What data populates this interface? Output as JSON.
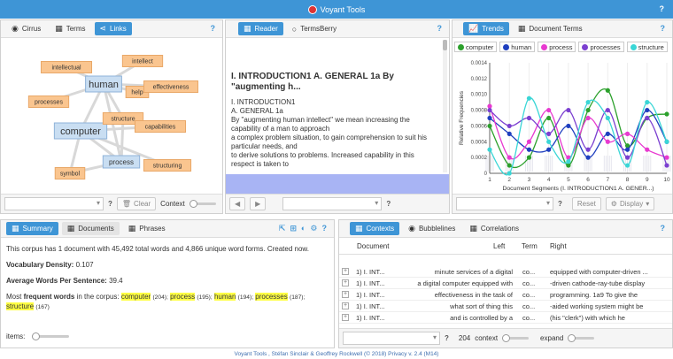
{
  "app": {
    "title": "Voyant Tools",
    "help": "?"
  },
  "cirrus_panel": {
    "tabs": [
      {
        "label": "Cirrus",
        "icon": "eye-icon"
      },
      {
        "label": "Terms",
        "icon": "table-icon"
      },
      {
        "label": "Links",
        "icon": "share-icon"
      }
    ],
    "nodes": [
      {
        "label": "intellectual",
        "type": "context"
      },
      {
        "label": "intellect",
        "type": "context"
      },
      {
        "label": "human",
        "type": "keyword"
      },
      {
        "label": "help",
        "type": "context"
      },
      {
        "label": "effectiveness",
        "type": "context"
      },
      {
        "label": "processes",
        "type": "context"
      },
      {
        "label": "computer",
        "type": "keyword"
      },
      {
        "label": "structure",
        "type": "context"
      },
      {
        "label": "capabilities",
        "type": "context"
      },
      {
        "label": "process",
        "type": "keyword"
      },
      {
        "label": "structuring",
        "type": "context"
      },
      {
        "label": "symbol",
        "type": "context"
      }
    ],
    "footer": {
      "clear": "Clear",
      "context": "Context"
    }
  },
  "reader_panel": {
    "tabs": [
      {
        "label": "Reader",
        "icon": "table-icon"
      },
      {
        "label": "TermsBerry",
        "icon": "circle-icon"
      }
    ],
    "heading": "I. INTRODUCTION1 A. GENERAL 1a By \"augmenting h...",
    "lines": [
      "I. INTRODUCTION1",
      "A. GENERAL 1a",
      "By \"augmenting human intellect\" we mean increasing the capability of a man to approach",
      "a complex problem situation, to gain comprehension to suit his particular needs, and",
      "to derive solutions to problems. Increased capability in this respect is taken to"
    ]
  },
  "trends_panel": {
    "tabs": [
      {
        "label": "Trends",
        "icon": "chart-icon"
      },
      {
        "label": "Document Terms",
        "icon": "table-icon"
      }
    ],
    "legend": [
      {
        "name": "computer",
        "color": "#2ca02c"
      },
      {
        "name": "human",
        "color": "#1f3fbf"
      },
      {
        "name": "process",
        "color": "#e83ad0"
      },
      {
        "name": "processes",
        "color": "#7b3fd0"
      },
      {
        "name": "structure",
        "color": "#3ad6d6"
      }
    ],
    "footer": {
      "reset": "Reset",
      "display": "Display"
    }
  },
  "chart_data": {
    "type": "line",
    "x": [
      1,
      2,
      3,
      4,
      5,
      6,
      7,
      8,
      9,
      10
    ],
    "ylabel": "Relative Frequencies",
    "xlabel": "Document Segments (I. INTRODUCTION1 A. GENER...)",
    "ylim": [
      0,
      0.0014
    ],
    "yticks": [
      "0",
      "0.0002",
      "0.0004",
      "0.0006",
      "0.0008",
      "0.0010",
      "0.0012",
      "0.0014"
    ],
    "series": [
      {
        "name": "computer",
        "values": [
          0.0006,
          0.0001,
          0.0002,
          0.0007,
          0.0001,
          0.0008,
          0.00105,
          0.00035,
          0.0007,
          0.00075
        ]
      },
      {
        "name": "human",
        "values": [
          0.0007,
          0.0005,
          0.0003,
          0.0003,
          0.0006,
          0.0002,
          0.0005,
          0.0003,
          0.0008,
          0.0004
        ]
      },
      {
        "name": "process",
        "values": [
          0.00085,
          0.0002,
          0.0004,
          0.0008,
          0.0002,
          0.0007,
          0.0004,
          0.0005,
          0.0003,
          0.0002
        ]
      },
      {
        "name": "processes",
        "values": [
          0.0008,
          0.0006,
          0.0007,
          0.0005,
          0.0008,
          0.0003,
          0.0008,
          0.0002,
          0.0007,
          0.0001
        ]
      },
      {
        "name": "structure",
        "values": [
          0.0003,
          0.0,
          0.00095,
          0.0004,
          0.00015,
          0.0009,
          0.0007,
          0.0001,
          0.0009,
          0.0004
        ]
      }
    ]
  },
  "summary_panel": {
    "tabs": [
      {
        "label": "Summary",
        "icon": "table-icon"
      },
      {
        "label": "Documents",
        "icon": "table-icon"
      },
      {
        "label": "Phrases",
        "icon": "table-icon"
      }
    ],
    "intro": "This corpus has 1 document with 45,492 total words and 4,866 unique word forms. Created now.",
    "vocab_label": "Vocabulary Density:",
    "vocab_value": "0.107",
    "avg_label": "Average Words Per Sentence:",
    "avg_value": "39.4",
    "freq_prefix": "Most",
    "freq_bold": "frequent words",
    "freq_suffix": "in the corpus:",
    "freq_terms": [
      {
        "term": "computer",
        "count": "(204);"
      },
      {
        "term": "process",
        "count": "(195);"
      },
      {
        "term": "human",
        "count": "(194);"
      },
      {
        "term": "processes",
        "count": "(187);"
      },
      {
        "term": "structure",
        "count": "(167)"
      }
    ],
    "items_label": "items:"
  },
  "contexts_panel": {
    "tabs": [
      {
        "label": "Contexts",
        "icon": "table-icon"
      },
      {
        "label": "Bubblelines",
        "icon": "eye-icon"
      },
      {
        "label": "Correlations",
        "icon": "table-icon"
      }
    ],
    "columns": [
      "Document",
      "Left",
      "Term",
      "Right"
    ],
    "rows": [
      {
        "doc": "1) I. INT...",
        "left": "minute services of a digital",
        "term": "co...",
        "right": "equipped with computer-driven ..."
      },
      {
        "doc": "1) I. INT...",
        "left": "a digital computer equipped with",
        "term": "co...",
        "right": "-driven cathode-ray-tube display"
      },
      {
        "doc": "1) I. INT...",
        "left": "effectiveness in the task of",
        "term": "co...",
        "right": "programming. 1a9 To give the"
      },
      {
        "doc": "1) I. INT...",
        "left": "what sort of thing this",
        "term": "co...",
        "right": "-aided working system might be"
      },
      {
        "doc": "1) I. INT...",
        "left": "and is controlled by a",
        "term": "co...",
        "right": "(his \"clerk\") with which he"
      }
    ],
    "count": "204",
    "context": "context",
    "expand": "expand"
  },
  "footer": {
    "text": "Voyant Tools , Stéfan Sinclair & Geoffrey Rockwell (© 2018) Privacy v. 2.4 (M14)"
  }
}
